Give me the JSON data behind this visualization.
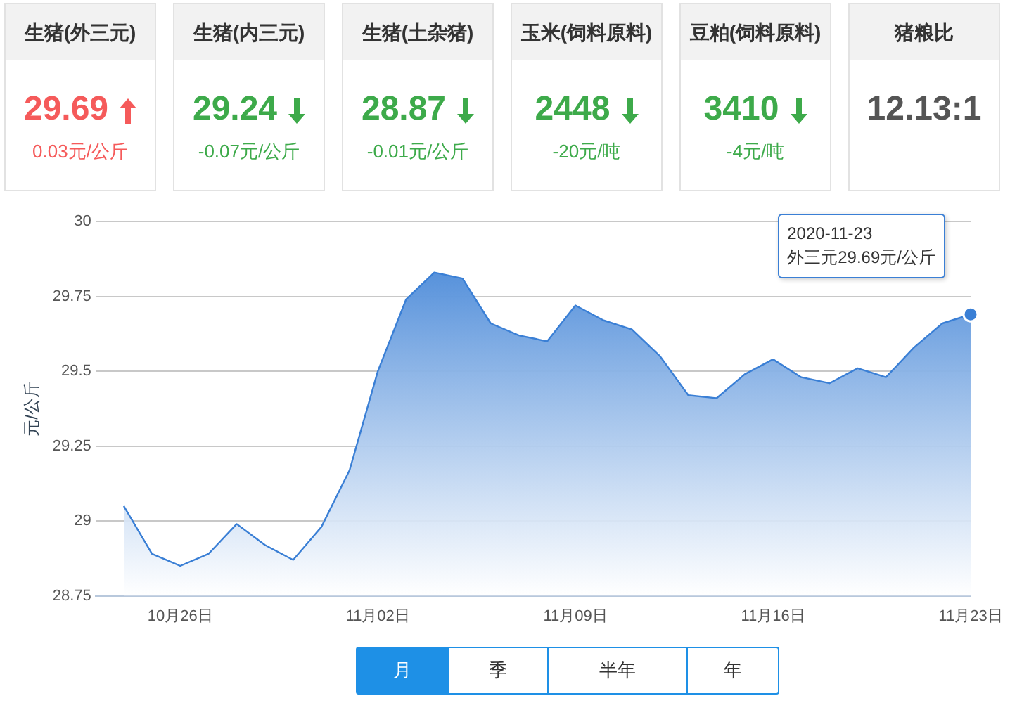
{
  "chart_data": [
    {
      "type": "other",
      "categories": [
        "生猪(外三元)",
        "生猪(内三元)",
        "生猪(土杂猪)",
        "玉米(饲料原料)",
        "豆粕(饲料原料)",
        "猪粮比"
      ],
      "annotations": [
        "29.69",
        "29.24",
        "28.87",
        "2448",
        "3410",
        "12.13:1"
      ],
      "series": [
        {
          "values": [
            0.03,
            -0.07,
            -0.01,
            -20,
            -4,
            null
          ],
          "value_labels": [
            "0.03元/公斤",
            "-0.07元/公斤",
            "-0.01元/公斤",
            "-20元/吨",
            "-4元/吨",
            null
          ]
        }
      ]
    },
    {
      "type": "area",
      "ylabel": "元/公斤",
      "color": "#3a7fd5",
      "x": [
        "2020-10-24",
        "2020-10-25",
        "2020-10-26",
        "2020-10-27",
        "2020-10-28",
        "2020-10-29",
        "2020-10-30",
        "2020-10-31",
        "2020-11-01",
        "2020-11-02",
        "2020-11-03",
        "2020-11-04",
        "2020-11-05",
        "2020-11-06",
        "2020-11-07",
        "2020-11-08",
        "2020-11-09",
        "2020-11-10",
        "2020-11-11",
        "2020-11-12",
        "2020-11-13",
        "2020-11-14",
        "2020-11-15",
        "2020-11-16",
        "2020-11-17",
        "2020-11-18",
        "2020-11-19",
        "2020-11-20",
        "2020-11-21",
        "2020-11-22",
        "2020-11-23"
      ],
      "values": [
        29.05,
        28.89,
        28.85,
        28.89,
        28.99,
        28.92,
        28.87,
        28.98,
        29.17,
        29.5,
        29.74,
        29.83,
        29.81,
        29.66,
        29.62,
        29.6,
        29.72,
        29.67,
        29.64,
        29.55,
        29.42,
        29.41,
        29.49,
        29.54,
        29.48,
        29.46,
        29.51,
        29.48,
        29.58,
        29.66,
        29.69
      ],
      "xlim": [
        "2020-10-23",
        "2020-11-23"
      ],
      "xticks": [
        {
          "value": "2020-10-26",
          "label": "10月26日"
        },
        {
          "value": "2020-11-02",
          "label": "11月02日"
        },
        {
          "value": "2020-11-09",
          "label": "11月09日"
        },
        {
          "value": "2020-11-16",
          "label": "11月16日"
        },
        {
          "value": "2020-11-23",
          "label": "11月23日"
        }
      ],
      "ylim": [
        28.75,
        30
      ],
      "yticks": [
        28.75,
        29,
        29.25,
        29.5,
        29.75,
        30
      ],
      "grid": "y",
      "marker": "none",
      "legend": false,
      "annotations": [
        "2020-11-23\n外三元29.69元/公斤",
        "月",
        "季",
        "半年",
        "年"
      ]
    }
  ]
}
